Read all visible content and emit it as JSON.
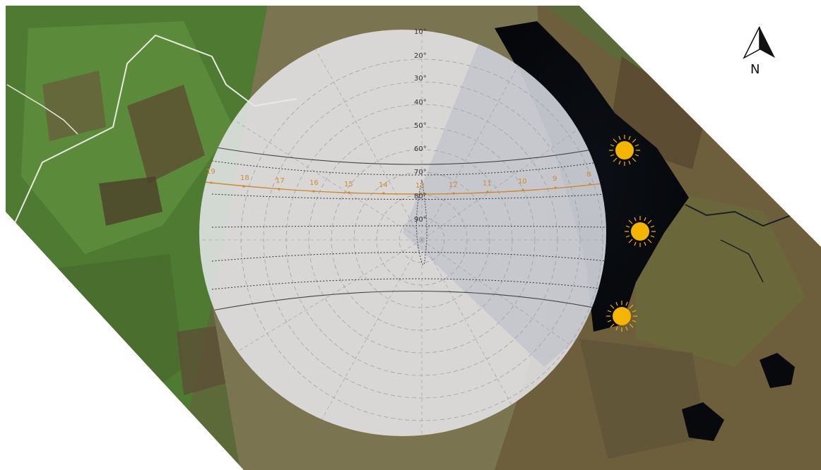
{
  "map": {
    "north_label": "N",
    "colors": {
      "terrain_green": "#4f7a33",
      "terrain_brown": "#6d5a3a",
      "lake": "#0b0d12",
      "sun": "#f5b400",
      "hour_line": "#d08a2e"
    }
  },
  "sunpath": {
    "altitude_labels": [
      "10°",
      "20°",
      "30°",
      "40°",
      "50°",
      "60°",
      "70°",
      "80°",
      "90°"
    ],
    "hour_labels": [
      "19",
      "18",
      "17",
      "16",
      "15",
      "14",
      "13",
      "12",
      "11",
      "10",
      "9",
      "8"
    ],
    "sun_icons": [
      "sun-icon-summer",
      "sun-icon-equinox",
      "sun-icon-winter"
    ]
  }
}
